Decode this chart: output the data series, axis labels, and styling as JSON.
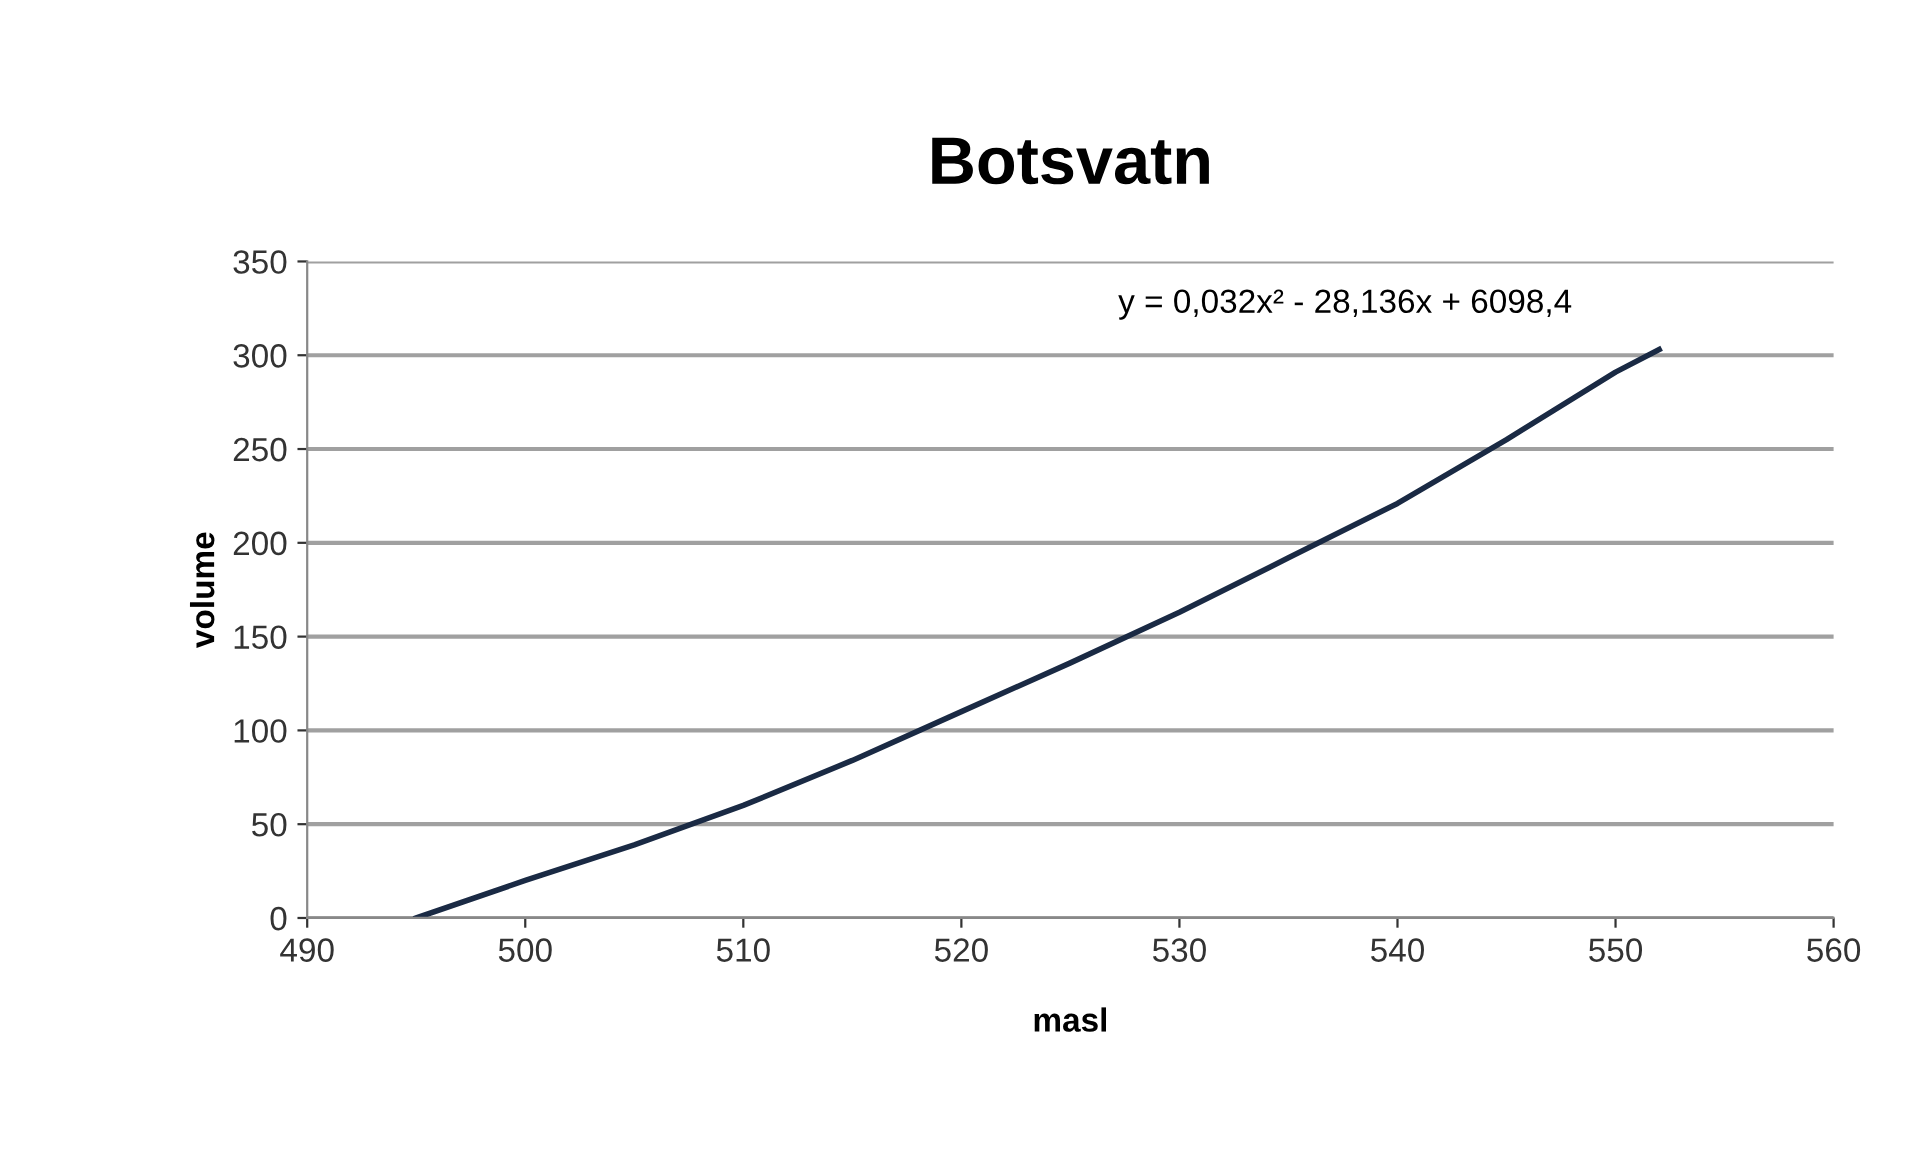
{
  "chart_data": {
    "type": "line",
    "title": "Botsvatn",
    "xlabel": "masl",
    "ylabel": "volume",
    "series": [
      {
        "color": "#1a2a44",
        "x": [
          495,
          500,
          505,
          510,
          515,
          520,
          525,
          530,
          535,
          540,
          545,
          550,
          552
        ],
        "values": [
          0,
          20,
          39,
          60,
          84,
          110,
          136,
          163,
          192,
          221,
          255,
          291,
          303
        ]
      }
    ],
    "xlim": [
      490,
      560
    ],
    "xticks": [
      490,
      500,
      510,
      520,
      530,
      540,
      550,
      560
    ],
    "ylim": [
      0,
      350
    ],
    "yticks": [
      0,
      50,
      100,
      150,
      200,
      250,
      300,
      350
    ],
    "grid": "y",
    "marker": "none",
    "line_style": "solid",
    "annotations": [
      "y = 0,032x² - 28,136x + 6098,4"
    ]
  }
}
